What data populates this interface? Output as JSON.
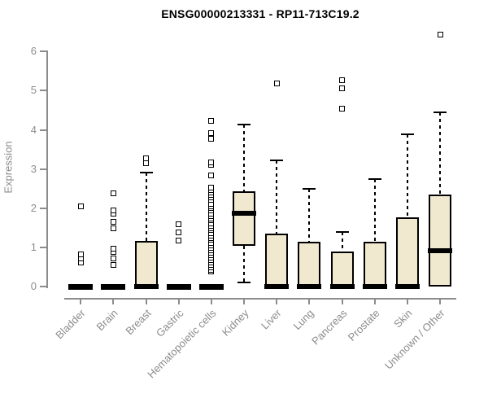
{
  "chart_data": {
    "type": "boxplot",
    "title": "ENSG00000213331 - RP11-713C19.2",
    "ylabel": "Expression",
    "ylim": [
      0,
      6
    ],
    "yticks": [
      0,
      1,
      2,
      3,
      4,
      5,
      6
    ],
    "grid": false,
    "legend": "none",
    "box_fill_color": "#F0E9CF",
    "box_line_color": "#000000",
    "axis_color": "#8c8c8c",
    "categories": [
      "Bladder",
      "Brain",
      "Breast",
      "Gastric",
      "Hematopoietic cells",
      "Kidney",
      "Liver",
      "Lung",
      "Pancreas",
      "Prostate",
      "Skin",
      "Unknown / Other"
    ],
    "boxes": [
      {
        "category": "Bladder",
        "min": 0,
        "q1": 0,
        "median": 0,
        "q3": 0,
        "max": 0,
        "outliers": [
          0.62,
          0.72,
          0.83,
          2.05
        ]
      },
      {
        "category": "Brain",
        "min": 0,
        "q1": 0,
        "median": 0,
        "q3": 0,
        "max": 0,
        "outliers": [
          0.55,
          0.73,
          0.88,
          0.97,
          1.49,
          1.66,
          1.86,
          1.95,
          2.38
        ]
      },
      {
        "category": "Breast",
        "min": 0,
        "q1": 0,
        "median": 0,
        "q3": 1.16,
        "max": 2.91,
        "outliers": [
          3.15,
          3.27
        ]
      },
      {
        "category": "Gastric",
        "min": 0,
        "q1": 0,
        "median": 0,
        "q3": 0,
        "max": 0,
        "outliers": [
          1.18,
          1.39,
          1.6
        ]
      },
      {
        "category": "Hematopoietic cells",
        "min": 0,
        "q1": 0,
        "median": 0,
        "q3": 0,
        "max": 0,
        "outliers": [
          0.39,
          0.44,
          0.5,
          0.56,
          0.62,
          0.69,
          0.75,
          0.81,
          0.87,
          0.94,
          1.0,
          1.06,
          1.12,
          1.19,
          1.25,
          1.31,
          1.37,
          1.44,
          1.5,
          1.56,
          1.62,
          1.69,
          1.75,
          1.81,
          1.87,
          1.94,
          2.0,
          2.06,
          2.12,
          2.22,
          2.28,
          2.34,
          2.41,
          2.47,
          2.53,
          2.84,
          3.12,
          3.18,
          3.78,
          3.92,
          4.23
        ]
      },
      {
        "category": "Kidney",
        "min": 0.1,
        "q1": 1.05,
        "median": 1.88,
        "q3": 2.43,
        "max": 4.13,
        "outliers": []
      },
      {
        "category": "Liver",
        "min": 0,
        "q1": 0,
        "median": 0,
        "q3": 1.36,
        "max": 3.22,
        "outliers": [
          5.19
        ]
      },
      {
        "category": "Lung",
        "min": 0,
        "q1": 0,
        "median": 0,
        "q3": 1.14,
        "max": 2.49,
        "outliers": []
      },
      {
        "category": "Pancreas",
        "min": 0,
        "q1": 0,
        "median": 0,
        "q3": 0.89,
        "max": 1.39,
        "outliers": [
          4.54,
          5.06,
          5.27
        ]
      },
      {
        "category": "Prostate",
        "min": 0,
        "q1": 0,
        "median": 0,
        "q3": 1.14,
        "max": 2.74,
        "outliers": []
      },
      {
        "category": "Skin",
        "min": 0,
        "q1": 0,
        "median": 0,
        "q3": 1.78,
        "max": 3.88,
        "outliers": []
      },
      {
        "category": "Unknown / Other",
        "min": 0,
        "q1": 0,
        "median": 0.91,
        "q3": 2.35,
        "max": 4.44,
        "outliers": [
          6.43
        ]
      }
    ]
  }
}
